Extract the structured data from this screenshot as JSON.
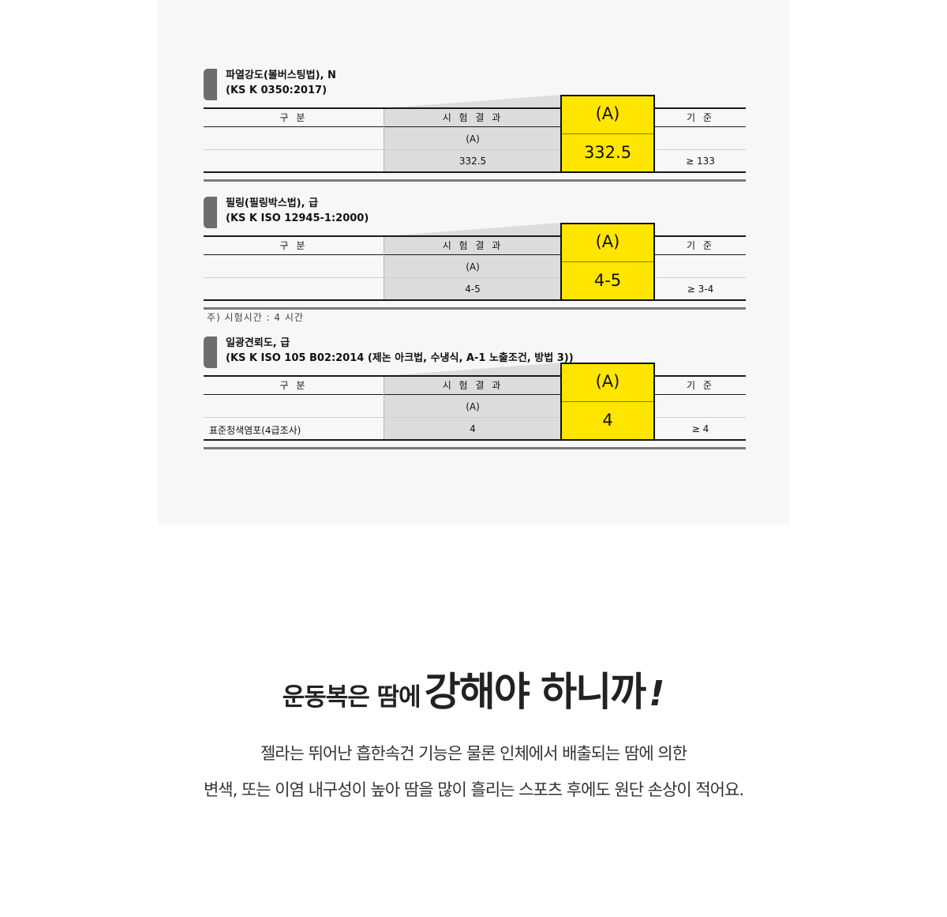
{
  "sections": [
    {
      "title": "파열강도(볼버스팅법), N",
      "standard": "(KS K 0350:2017)",
      "headers": {
        "category": "구 분",
        "result": "시 험 결 과",
        "criteria": "기 준"
      },
      "highlight_label": "(A)",
      "highlight_value": "332.5",
      "rows": [
        {
          "category": "",
          "result": "(A)",
          "criteria": ""
        },
        {
          "category": "",
          "result": "332.5",
          "criteria": "≥ 133"
        }
      ]
    },
    {
      "title": "필링(필링박스법), 급",
      "standard": "(KS K ISO 12945-1:2000)",
      "headers": {
        "category": "구 분",
        "result": "시 험 결 과",
        "criteria": "기 준"
      },
      "highlight_label": "(A)",
      "highlight_value": "4-5",
      "rows": [
        {
          "category": "",
          "result": "(A)",
          "criteria": ""
        },
        {
          "category": "",
          "result": "4-5",
          "criteria": "≥ 3-4"
        }
      ]
    },
    {
      "title": "일광견뢰도, 급",
      "standard": "(KS K ISO 105 B02:2014 (제논 아크법, 수냉식, A-1 노출조건, 방법 3))",
      "headers": {
        "category": "구 분",
        "result": "시 험 결 과",
        "criteria": "기 준"
      },
      "highlight_label": "(A)",
      "highlight_value": "4",
      "rows": [
        {
          "category": "",
          "result": "(A)",
          "criteria": ""
        },
        {
          "category": "표준청색염포(4급조사)",
          "result": "4",
          "criteria": "≥ 4"
        }
      ]
    }
  ],
  "note": "주)  시험시간 : 4 시간",
  "headline": {
    "part1": "운동복은 땀에",
    "part2": "강해야 하니까",
    "part3": "!"
  },
  "body_lines": [
    "젤라는 뛰어난 흡한속건 기능은 물론 인체에서 배출되는 땀에 의한",
    "변색, 또는 이염 내구성이 높아 땀을 많이 흘리는 스포츠 후에도 원단 손상이 적어요."
  ]
}
